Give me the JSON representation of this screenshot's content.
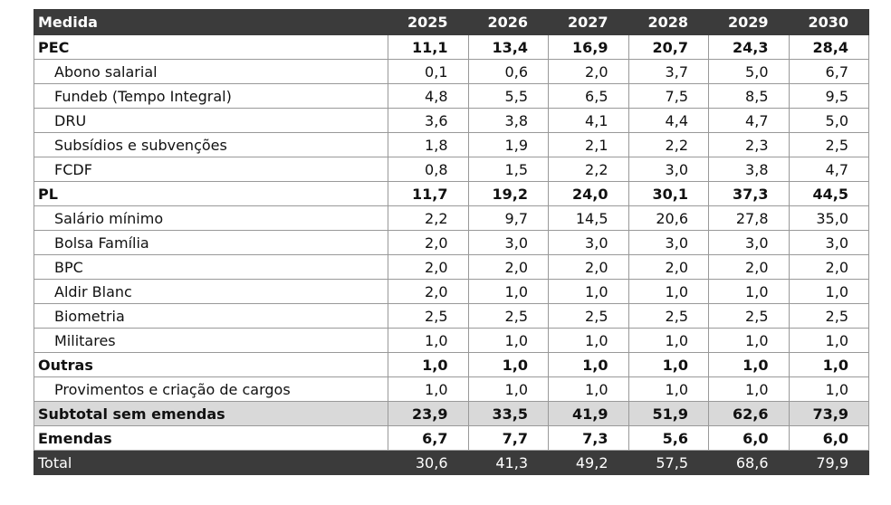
{
  "table": {
    "header": [
      "Medida",
      "2025",
      "2026",
      "2027",
      "2028",
      "2029",
      "2030"
    ],
    "rows": [
      [
        "PEC",
        "11,1",
        "13,4",
        "16,9",
        "20,7",
        "24,3",
        "28,4"
      ],
      [
        "Abono salarial",
        "0,1",
        "0,6",
        "2,0",
        "3,7",
        "5,0",
        "6,7"
      ],
      [
        "Fundeb (Tempo Integral)",
        "4,8",
        "5,5",
        "6,5",
        "7,5",
        "8,5",
        "9,5"
      ],
      [
        "DRU",
        "3,6",
        "3,8",
        "4,1",
        "4,4",
        "4,7",
        "5,0"
      ],
      [
        "Subsídios e subvenções",
        "1,8",
        "1,9",
        "2,1",
        "2,2",
        "2,3",
        "2,5"
      ],
      [
        "FCDF",
        "0,8",
        "1,5",
        "2,2",
        "3,0",
        "3,8",
        "4,7"
      ],
      [
        "PL",
        "11,7",
        "19,2",
        "24,0",
        "30,1",
        "37,3",
        "44,5"
      ],
      [
        "Salário mínimo",
        "2,2",
        "9,7",
        "14,5",
        "20,6",
        "27,8",
        "35,0"
      ],
      [
        "Bolsa Família",
        "2,0",
        "3,0",
        "3,0",
        "3,0",
        "3,0",
        "3,0"
      ],
      [
        "BPC",
        "2,0",
        "2,0",
        "2,0",
        "2,0",
        "2,0",
        "2,0"
      ],
      [
        "Aldir Blanc",
        "2,0",
        "1,0",
        "1,0",
        "1,0",
        "1,0",
        "1,0"
      ],
      [
        "Biometria",
        "2,5",
        "2,5",
        "2,5",
        "2,5",
        "2,5",
        "2,5"
      ],
      [
        "Militares",
        "1,0",
        "1,0",
        "1,0",
        "1,0",
        "1,0",
        "1,0"
      ],
      [
        "Outras",
        "1,0",
        "1,0",
        "1,0",
        "1,0",
        "1,0",
        "1,0"
      ],
      [
        "Provimentos e criação de cargos",
        "1,0",
        "1,0",
        "1,0",
        "1,0",
        "1,0",
        "1,0"
      ],
      [
        "Subtotal sem emendas",
        "23,9",
        "33,5",
        "41,9",
        "51,9",
        "62,6",
        "73,9"
      ],
      [
        "Emendas",
        "6,7",
        "7,7",
        "7,3",
        "5,6",
        "6,0",
        "6,0"
      ],
      [
        "Total",
        "30,6",
        "41,3",
        "49,2",
        "57,5",
        "68,6",
        "79,9"
      ]
    ]
  }
}
